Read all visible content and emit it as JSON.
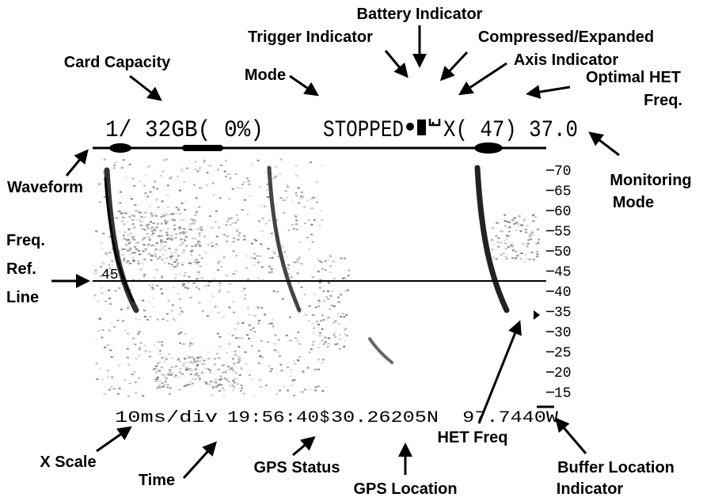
{
  "screen": {
    "card_status": "1/ 32GB( 0%)",
    "mode": "STOPPED",
    "het_status": "X( 47) 37.0",
    "ref_line_label": 45,
    "freq_axis": [
      70,
      65,
      60,
      55,
      50,
      45,
      40,
      35,
      30,
      25,
      20,
      15
    ],
    "footer": {
      "x_scale": "10ms/div",
      "time": "19:56:40",
      "gps_status": "$",
      "gps_location": "30.26205N  97.7440W"
    }
  },
  "annotations": {
    "battery": "Battery Indicator",
    "trigger": "Trigger Indicator",
    "compressed": [
      "Compressed/Expanded",
      "Axis Indicator"
    ],
    "card_capacity": "Card Capacity",
    "mode": "Mode",
    "optimal_het": [
      "Optimal HET",
      "Freq."
    ],
    "monitoring": [
      "Monitoring",
      "Mode"
    ],
    "waveform": "Waveform",
    "freq_ref": [
      "Freq.",
      "Ref.",
      "Line"
    ],
    "het_freq": "HET Freq",
    "buffer": [
      "Buffer Location",
      "Indicator"
    ],
    "x_scale": "X Scale",
    "time": "Time",
    "gps_status": "GPS Status",
    "gps_location": "GPS Location"
  }
}
